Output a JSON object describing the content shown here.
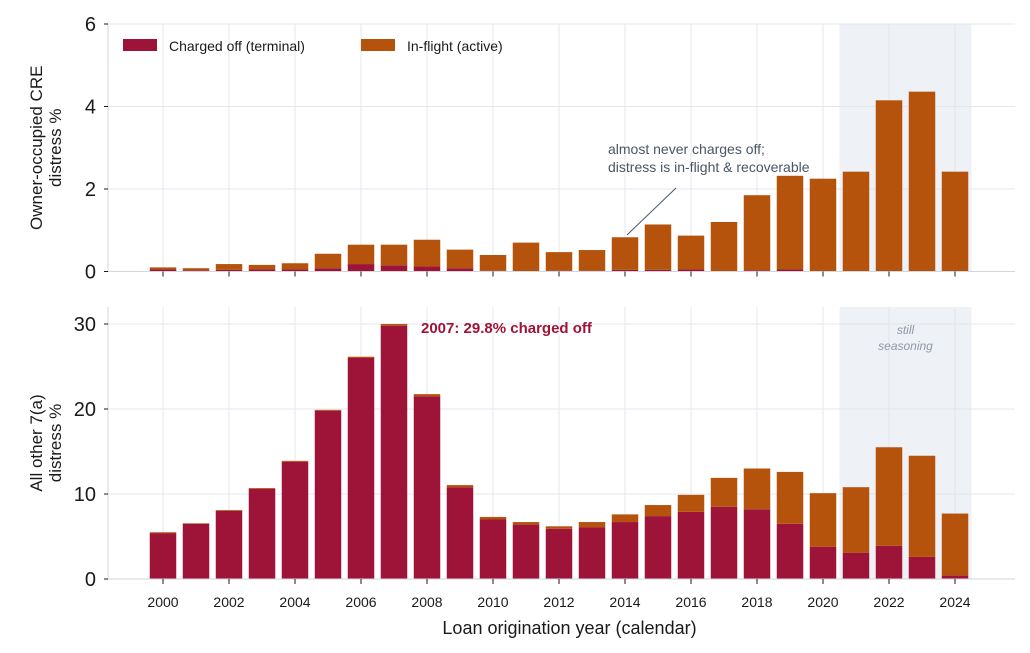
{
  "chart_data": [
    {
      "type": "bar",
      "stacked": true,
      "panel": "top",
      "ylabel_lines": [
        "Owner-occupied CRE",
        "distress %"
      ],
      "ylim": [
        0,
        6
      ],
      "yticks": [
        0,
        2,
        4,
        6
      ],
      "x": [
        2000,
        2001,
        2002,
        2003,
        2004,
        2005,
        2006,
        2007,
        2008,
        2009,
        2010,
        2011,
        2012,
        2013,
        2014,
        2015,
        2016,
        2017,
        2018,
        2019,
        2020,
        2021,
        2022,
        2023,
        2024
      ],
      "series": [
        {
          "name": "Charged off (terminal)",
          "values": [
            0.05,
            0.03,
            0.04,
            0.05,
            0.05,
            0.08,
            0.18,
            0.15,
            0.12,
            0.08,
            0.02,
            0.0,
            0.02,
            0.02,
            0.04,
            0.04,
            0.05,
            0.0,
            0.03,
            0.05,
            0.0,
            0.0,
            0.0,
            0.0,
            0.0
          ]
        },
        {
          "name": "In-flight (active)",
          "values": [
            0.05,
            0.05,
            0.14,
            0.11,
            0.15,
            0.35,
            0.47,
            0.5,
            0.65,
            0.45,
            0.38,
            0.7,
            0.45,
            0.5,
            0.79,
            1.1,
            0.82,
            1.2,
            1.82,
            2.27,
            2.25,
            2.42,
            4.15,
            4.36,
            2.42
          ]
        }
      ],
      "shaded_span_years": [
        2020.5,
        2024.5
      ],
      "annotation": {
        "lines": [
          "almost never charges off;",
          "distress is in-flight & recoverable"
        ],
        "points_to_year": 2014
      },
      "legend": {
        "placement": "top-left",
        "columns": 2
      },
      "grid": true
    },
    {
      "type": "bar",
      "stacked": true,
      "panel": "bottom",
      "ylabel_lines": [
        "All other 7(a)",
        "distress %"
      ],
      "ylim": [
        0,
        32
      ],
      "yticks": [
        0,
        10,
        20,
        30
      ],
      "x": [
        2000,
        2001,
        2002,
        2003,
        2004,
        2005,
        2006,
        2007,
        2008,
        2009,
        2010,
        2011,
        2012,
        2013,
        2014,
        2015,
        2016,
        2017,
        2018,
        2019,
        2020,
        2021,
        2022,
        2023,
        2024
      ],
      "series": [
        {
          "name": "Charged off (terminal)",
          "values": [
            5.4,
            6.5,
            8.0,
            10.6,
            13.8,
            19.8,
            26.0,
            29.8,
            21.5,
            10.8,
            7.0,
            6.4,
            5.9,
            6.1,
            6.7,
            7.4,
            7.9,
            8.5,
            8.2,
            6.5,
            3.8,
            3.1,
            3.9,
            2.6,
            0.4
          ]
        },
        {
          "name": "In-flight (active)",
          "values": [
            0.1,
            0.05,
            0.1,
            0.1,
            0.1,
            0.1,
            0.15,
            0.2,
            0.25,
            0.25,
            0.3,
            0.3,
            0.3,
            0.6,
            0.9,
            1.3,
            2.0,
            3.4,
            4.8,
            6.1,
            6.3,
            7.7,
            11.6,
            11.9,
            7.3
          ]
        }
      ],
      "shaded_span_years": [
        2020.5,
        2024.5
      ],
      "peak_annotation": "2007: 29.8% charged off",
      "span_label_lines": [
        "still",
        "seasoning"
      ],
      "grid": true
    }
  ],
  "xlabel": "Loan origination year (calendar)",
  "xtick_labels": [
    "2000",
    "2002",
    "2004",
    "2006",
    "2008",
    "2010",
    "2012",
    "2014",
    "2016",
    "2018",
    "2020",
    "2022",
    "2024"
  ],
  "colors": {
    "charged_off": "#9e1439",
    "in_flight": "#b5530c",
    "shade": "#eef1f6",
    "grid": "#e3e7ec",
    "annotation": "#4a5565",
    "spine": "#cfd6de"
  }
}
